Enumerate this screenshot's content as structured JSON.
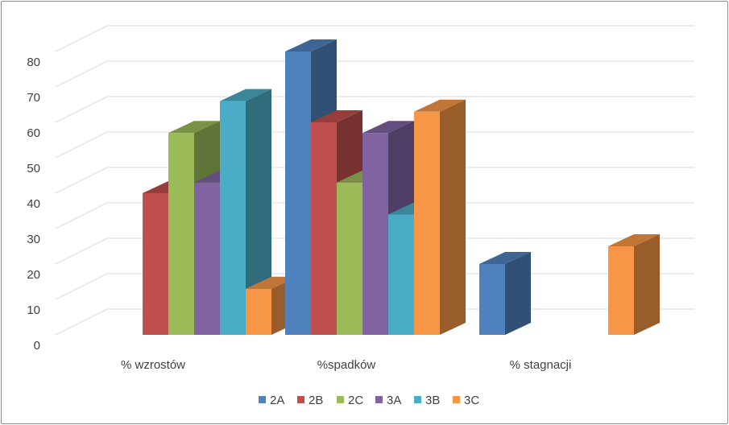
{
  "chart_data": {
    "type": "bar",
    "style": "3d-clustered-column",
    "categories": [
      "% wzrostów",
      "%spadków",
      "% stagnacji"
    ],
    "series": [
      {
        "name": "2A",
        "color": "#4F81BD",
        "values": [
          0,
          80,
          20
        ]
      },
      {
        "name": "2B",
        "color": "#C0504D",
        "values": [
          40,
          60,
          0
        ]
      },
      {
        "name": "2C",
        "color": "#9BBB59",
        "values": [
          57,
          43,
          0
        ]
      },
      {
        "name": "3A",
        "color": "#8064A2",
        "values": [
          43,
          57,
          0
        ]
      },
      {
        "name": "3B",
        "color": "#4BACC6",
        "values": [
          66,
          34,
          0
        ]
      },
      {
        "name": "3C",
        "color": "#F79646",
        "values": [
          13,
          63,
          25
        ]
      }
    ],
    "yticks": [
      "0",
      "10",
      "20",
      "30",
      "40",
      "50",
      "60",
      "70",
      "80"
    ],
    "ylim": [
      0,
      80
    ],
    "grid": true,
    "legend_position": "bottom",
    "title": "",
    "xlabel": "",
    "ylabel": ""
  }
}
